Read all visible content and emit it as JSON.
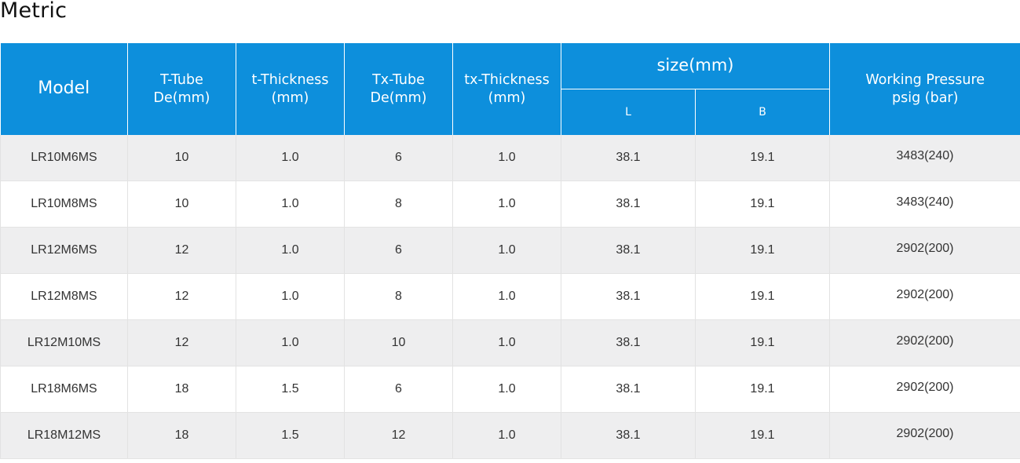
{
  "title": "Metric",
  "header": {
    "model": "Model",
    "t_tube": [
      "T-Tube",
      "De(mm)"
    ],
    "t_thickness": [
      "t-Thickness",
      "(mm)"
    ],
    "tx_tube": [
      "Tx-Tube",
      "De(mm)"
    ],
    "tx_thickness": [
      "tx-Thickness",
      "(mm)"
    ],
    "size": "size(mm)",
    "size_l": "L",
    "size_b": "B",
    "working_pressure": [
      "Working Pressure",
      "psig (bar)"
    ]
  },
  "rows": [
    {
      "model": "LR10M6MS",
      "t_tube": "10",
      "t_thickness": "1.0",
      "tx_tube": "6",
      "tx_thickness": "1.0",
      "l": "38.1",
      "b": "19.1",
      "wp": "3483(240)"
    },
    {
      "model": "LR10M8MS",
      "t_tube": "10",
      "t_thickness": "1.0",
      "tx_tube": "8",
      "tx_thickness": "1.0",
      "l": "38.1",
      "b": "19.1",
      "wp": "3483(240)"
    },
    {
      "model": "LR12M6MS",
      "t_tube": "12",
      "t_thickness": "1.0",
      "tx_tube": "6",
      "tx_thickness": "1.0",
      "l": "38.1",
      "b": "19.1",
      "wp": "2902(200)"
    },
    {
      "model": "LR12M8MS",
      "t_tube": "12",
      "t_thickness": "1.0",
      "tx_tube": "8",
      "tx_thickness": "1.0",
      "l": "38.1",
      "b": "19.1",
      "wp": "2902(200)"
    },
    {
      "model": "LR12M10MS",
      "t_tube": "12",
      "t_thickness": "1.0",
      "tx_tube": "10",
      "tx_thickness": "1.0",
      "l": "38.1",
      "b": "19.1",
      "wp": "2902(200)"
    },
    {
      "model": "LR18M6MS",
      "t_tube": "18",
      "t_thickness": "1.5",
      "tx_tube": "6",
      "tx_thickness": "1.0",
      "l": "38.1",
      "b": "19.1",
      "wp": "2902(200)"
    },
    {
      "model": "LR18M12MS",
      "t_tube": "18",
      "t_thickness": "1.5",
      "tx_tube": "12",
      "tx_thickness": "1.0",
      "l": "38.1",
      "b": "19.1",
      "wp": "2902(200)"
    }
  ],
  "colors": {
    "header_bg": "#0d8fdc",
    "row_odd": "#eeeeef",
    "row_even": "#ffffff"
  }
}
